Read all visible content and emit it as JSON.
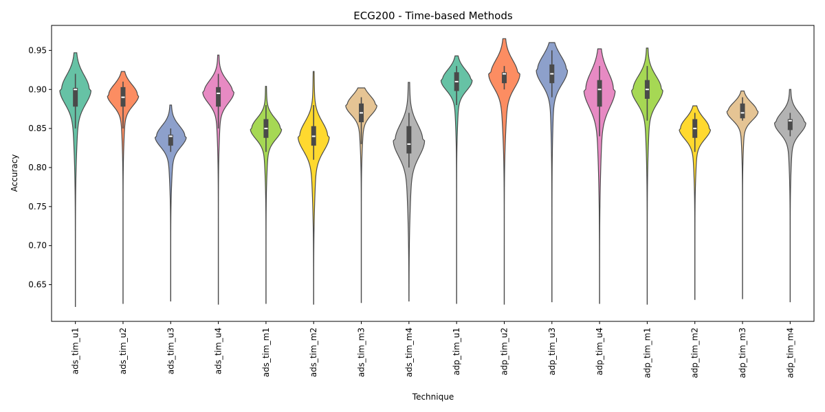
{
  "chart_data": {
    "type": "violin",
    "title": "ECG200 - Time-based Methods",
    "xlabel": "Technique",
    "ylabel": "Accuracy",
    "ylim": [
      0.603,
      0.982
    ],
    "yticks": [
      "0.65",
      "0.70",
      "0.75",
      "0.80",
      "0.85",
      "0.90",
      "0.95"
    ],
    "grid": false,
    "legend": "none",
    "categories": [
      {
        "name": "ads_tim_u1",
        "color": "#66c2a5",
        "min": 0.622,
        "max": 0.947,
        "q1": 0.878,
        "median": 0.9,
        "q3": 0.902,
        "wlo": 0.85,
        "whi": 0.92,
        "mode": 0.9,
        "width": 0.82,
        "spread": 0.018,
        "tail": 0.25
      },
      {
        "name": "ads_tim_u2",
        "color": "#fc8d62",
        "min": 0.626,
        "max": 0.923,
        "q1": 0.878,
        "median": 0.89,
        "q3": 0.903,
        "wlo": 0.85,
        "whi": 0.91,
        "mode": 0.893,
        "width": 0.82,
        "spread": 0.013,
        "tail": 0.18
      },
      {
        "name": "ads_tim_u3",
        "color": "#8da0cb",
        "min": 0.629,
        "max": 0.88,
        "q1": 0.828,
        "median": 0.84,
        "q3": 0.842,
        "wlo": 0.82,
        "whi": 0.85,
        "mode": 0.84,
        "width": 0.82,
        "spread": 0.013,
        "tail": 0.2
      },
      {
        "name": "ads_tim_u4",
        "color": "#e78ac3",
        "min": 0.625,
        "max": 0.944,
        "q1": 0.878,
        "median": 0.895,
        "q3": 0.903,
        "wlo": 0.85,
        "whi": 0.92,
        "mode": 0.897,
        "width": 0.82,
        "spread": 0.014,
        "tail": 0.18
      },
      {
        "name": "ads_tim_m1",
        "color": "#a6d854",
        "min": 0.626,
        "max": 0.904,
        "q1": 0.838,
        "median": 0.85,
        "q3": 0.862,
        "wlo": 0.82,
        "whi": 0.88,
        "mode": 0.85,
        "width": 0.82,
        "spread": 0.013,
        "tail": 0.18
      },
      {
        "name": "ads_tim_m2",
        "color": "#ffd92f",
        "min": 0.625,
        "max": 0.923,
        "q1": 0.828,
        "median": 0.84,
        "q3": 0.853,
        "wlo": 0.81,
        "whi": 0.88,
        "mode": 0.84,
        "width": 0.82,
        "spread": 0.018,
        "tail": 0.22
      },
      {
        "name": "ads_tim_m3",
        "color": "#e5c494",
        "min": 0.627,
        "max": 0.902,
        "q1": 0.858,
        "median": 0.87,
        "q3": 0.882,
        "wlo": 0.83,
        "whi": 0.89,
        "mode": 0.88,
        "width": 0.82,
        "spread": 0.012,
        "tail": 0.2
      },
      {
        "name": "ads_tim_m4",
        "color": "#b3b3b3",
        "min": 0.629,
        "max": 0.909,
        "q1": 0.818,
        "median": 0.83,
        "q3": 0.853,
        "wlo": 0.8,
        "whi": 0.87,
        "mode": 0.835,
        "width": 0.82,
        "spread": 0.02,
        "tail": 0.25
      },
      {
        "name": "adp_tim_u1",
        "color": "#66c2a5",
        "min": 0.626,
        "max": 0.943,
        "q1": 0.898,
        "median": 0.91,
        "q3": 0.922,
        "wlo": 0.88,
        "whi": 0.93,
        "mode": 0.912,
        "width": 0.82,
        "spread": 0.013,
        "tail": 0.18
      },
      {
        "name": "adp_tim_u2",
        "color": "#fc8d62",
        "min": 0.625,
        "max": 0.965,
        "q1": 0.908,
        "median": 0.92,
        "q3": 0.922,
        "wlo": 0.9,
        "whi": 0.93,
        "mode": 0.92,
        "width": 0.82,
        "spread": 0.017,
        "tail": 0.3
      },
      {
        "name": "adp_tim_u3",
        "color": "#8da0cb",
        "min": 0.628,
        "max": 0.96,
        "q1": 0.908,
        "median": 0.92,
        "q3": 0.932,
        "wlo": 0.89,
        "whi": 0.95,
        "mode": 0.925,
        "width": 0.82,
        "spread": 0.018,
        "tail": 0.15
      },
      {
        "name": "adp_tim_u4",
        "color": "#e78ac3",
        "min": 0.626,
        "max": 0.952,
        "q1": 0.878,
        "median": 0.9,
        "q3": 0.912,
        "wlo": 0.84,
        "whi": 0.93,
        "mode": 0.9,
        "width": 0.82,
        "spread": 0.022,
        "tail": 0.25
      },
      {
        "name": "adp_tim_m1",
        "color": "#a6d854",
        "min": 0.625,
        "max": 0.953,
        "q1": 0.888,
        "median": 0.9,
        "q3": 0.912,
        "wlo": 0.86,
        "whi": 0.93,
        "mode": 0.9,
        "width": 0.82,
        "spread": 0.017,
        "tail": 0.2
      },
      {
        "name": "adp_tim_m2",
        "color": "#ffd92f",
        "min": 0.631,
        "max": 0.879,
        "q1": 0.838,
        "median": 0.85,
        "q3": 0.862,
        "wlo": 0.82,
        "whi": 0.87,
        "mode": 0.85,
        "width": 0.82,
        "spread": 0.013,
        "tail": 0.18
      },
      {
        "name": "adp_tim_m3",
        "color": "#e5c494",
        "min": 0.632,
        "max": 0.898,
        "q1": 0.863,
        "median": 0.87,
        "q3": 0.882,
        "wlo": 0.86,
        "whi": 0.89,
        "mode": 0.872,
        "width": 0.82,
        "spread": 0.011,
        "tail": 0.15
      },
      {
        "name": "adp_tim_m4",
        "color": "#b3b3b3",
        "min": 0.628,
        "max": 0.9,
        "q1": 0.848,
        "median": 0.86,
        "q3": 0.862,
        "wlo": 0.84,
        "whi": 0.87,
        "mode": 0.857,
        "width": 0.82,
        "spread": 0.013,
        "tail": 0.18
      }
    ]
  }
}
